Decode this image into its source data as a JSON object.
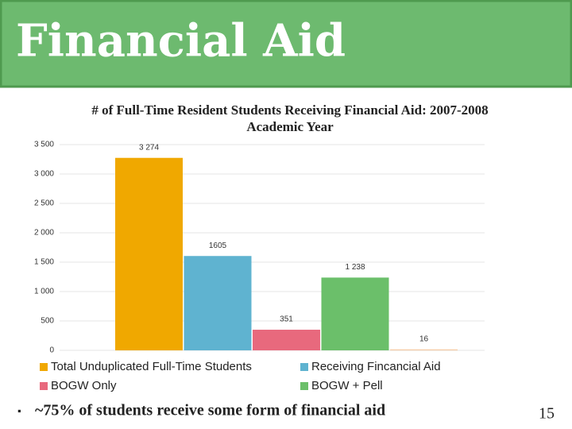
{
  "header": {
    "title": "Financial Aid"
  },
  "chart_data": {
    "type": "bar",
    "title": "# of Full-Time Resident Students Receiving Financial Aid: 2007-2008 Academic Year",
    "series": [
      {
        "name": "Total Unduplicated Full-Time Students",
        "color": "#f0a800",
        "values": [
          3274
        ],
        "value_labels": [
          "3 274"
        ]
      },
      {
        "name": "Receiving Fincancial Aid",
        "color": "#5fb3d0",
        "values": [
          1605
        ]
      },
      {
        "name": "BOGW Only",
        "color": "#e8697d",
        "values": [
          351
        ]
      },
      {
        "name": "BOGW + Pell",
        "color": "#6bbf6a",
        "values": [
          1238
        ],
        "value_labels": [
          "1 238"
        ]
      },
      {
        "name": null,
        "color": "#f5c9a0",
        "values": [
          16
        ]
      }
    ],
    "ylim": [
      0,
      3500
    ],
    "yticks": [
      0,
      500,
      {
        "value": 1000,
        "label": "1 000"
      },
      {
        "value": 1500,
        "label": "1 500"
      },
      {
        "value": 2000,
        "label": "2 000"
      },
      {
        "value": 2500,
        "label": "2 500"
      },
      {
        "value": 3000,
        "label": "3 000"
      },
      {
        "value": 3500,
        "label": "3 500"
      }
    ],
    "grid": true
  },
  "bullets": [
    "~75% of students receive some form of financial aid"
  ],
  "page_number": "15"
}
